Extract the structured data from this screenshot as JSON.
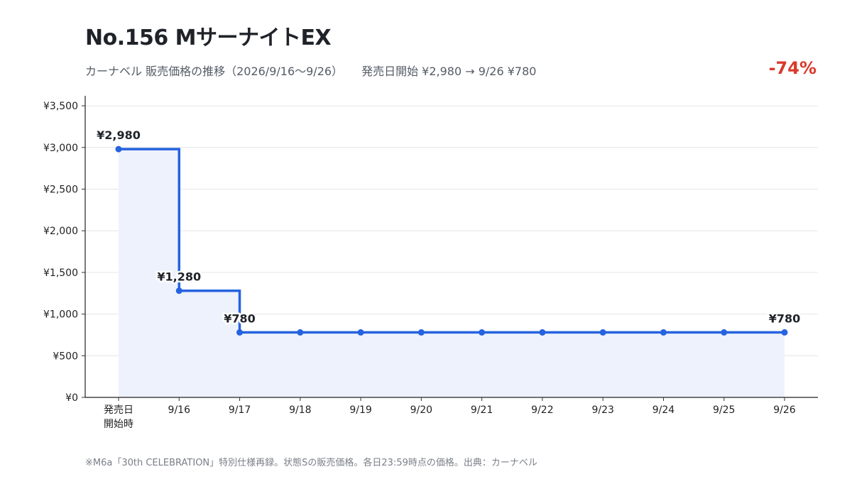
{
  "header": {
    "title": "No.156 MサーナイトEX",
    "subtitle": "カーナベル 販売価格の推移（2026/9/16〜9/26）",
    "summary": "発売日開始 ¥2,980 → 9/26 ¥780",
    "change": "-74%"
  },
  "footnote": "※M6a「30th CELEBRATION」特別仕様再録。状態Sの販売価格。各日23:59時点の価格。出典：カーナベル",
  "colors": {
    "line": "#2563e0",
    "fill": "#edf2fc",
    "accent_negative": "#d93a2b",
    "grid": "#e6e6e6"
  },
  "chart_data": {
    "type": "line",
    "step": "after",
    "categories": [
      [
        "発売日",
        "開始時"
      ],
      "9/16",
      "9/17",
      "9/18",
      "9/19",
      "9/20",
      "9/21",
      "9/22",
      "9/23",
      "9/24",
      "9/25",
      "9/26"
    ],
    "values": [
      2980,
      1280,
      780,
      780,
      780,
      780,
      780,
      780,
      780,
      780,
      780,
      780
    ],
    "point_labels": [
      {
        "index": 0,
        "text": "¥2,980"
      },
      {
        "index": 1,
        "text": "¥1,280"
      },
      {
        "index": 2,
        "text": "¥780"
      },
      {
        "index": 11,
        "text": "¥780"
      }
    ],
    "yticks": [
      0,
      500,
      1000,
      1500,
      2000,
      2500,
      3000,
      3500
    ],
    "ytick_labels": [
      "¥0",
      "¥500",
      "¥1,000",
      "¥1,500",
      "¥2,000",
      "¥2,500",
      "¥3,000",
      "¥3,500"
    ],
    "ylim": [
      0,
      3620
    ],
    "grid": true,
    "legend": "none"
  }
}
